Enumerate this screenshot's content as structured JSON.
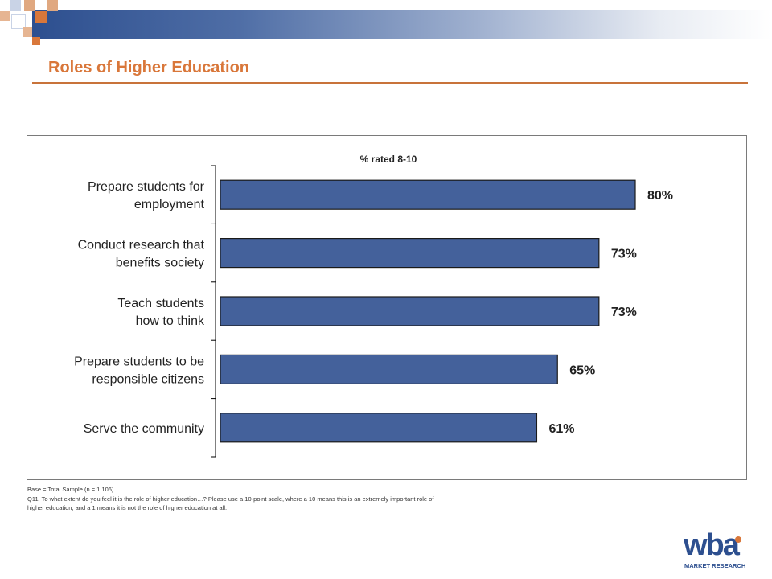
{
  "header": {
    "title": "Roles of Higher Education",
    "accent_color": "#d9773a",
    "band_color": "#2d4f8f"
  },
  "chart_data": {
    "type": "bar",
    "orientation": "horizontal",
    "subtitle": "% rated 8-10",
    "categories": [
      [
        "Prepare students for",
        "employment"
      ],
      [
        "Conduct research that",
        "benefits society"
      ],
      [
        "Teach students",
        "how to think"
      ],
      [
        "Prepare students to be",
        "responsible citizens"
      ],
      [
        "Serve the community"
      ]
    ],
    "values": [
      80,
      73,
      73,
      65,
      61
    ],
    "value_labels": [
      "80%",
      "73%",
      "73%",
      "65%",
      "61%"
    ],
    "xlim": [
      0,
      100
    ],
    "bar_color": "#44619b",
    "grid": false
  },
  "footnotes": {
    "base": "Base = Total Sample (n = 1,106)",
    "question_line1": "Q11. To what extent do you feel it is the role of higher education…?  Please use a 10-point scale, where a 10 means this is an extremely important role of",
    "question_line2": "higher education, and a 1 means it is not the role of higher education at all."
  },
  "logo": {
    "wordmark": "wba",
    "tagline": "MARKET RESEARCH",
    "primary_color": "#2d4f8f",
    "secondary_color": "#d9773a"
  }
}
